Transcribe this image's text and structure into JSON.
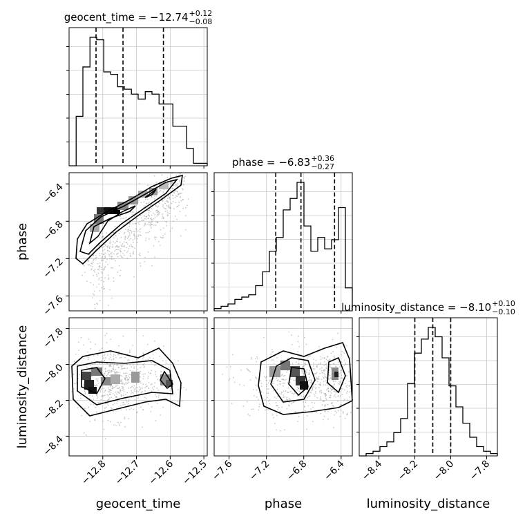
{
  "chart_data": {
    "type": "corner",
    "parameters": [
      "geocent_time",
      "phase",
      "luminosity_distance"
    ],
    "axis_ranges": {
      "geocent_time": [
        -12.9,
        -12.49
      ],
      "phase": [
        -7.76,
        -6.28
      ],
      "luminosity_distance": [
        -8.51,
        -7.74
      ]
    },
    "tick_values": {
      "geocent_time": [
        -12.8,
        -12.7,
        -12.6,
        -12.5
      ],
      "phase": [
        -7.6,
        -7.2,
        -6.8,
        -6.4
      ],
      "luminosity_distance": [
        -8.4,
        -8.2,
        -8.0,
        -7.8
      ]
    },
    "tick_labels": {
      "geocent_time": [
        "−12.8",
        "−12.7",
        "−12.6",
        "−12.5"
      ],
      "phase": [
        "−7.6",
        "−7.2",
        "−6.8",
        "−6.4"
      ],
      "luminosity_distance": [
        "−8.4",
        "−8.2",
        "−8.0",
        "−7.8"
      ]
    },
    "titles": [
      {
        "param": "geocent_time",
        "main": "geocent_time = −12.74",
        "plus": "+0.12",
        "minus": "−0.08"
      },
      {
        "param": "phase",
        "main": "phase = −6.83",
        "plus": "+0.36",
        "minus": "−0.27"
      },
      {
        "param": "luminosity_distance",
        "main": "luminosity_distance = −8.10",
        "plus": "+0.10",
        "minus": "−0.10"
      }
    ],
    "quantiles": {
      "geocent_time": [
        -12.82,
        -12.74,
        -12.62
      ],
      "phase": [
        -7.1,
        -6.83,
        -6.47
      ],
      "luminosity_distance": [
        -8.2,
        -8.1,
        -8.0
      ]
    },
    "histograms": {
      "geocent_time": {
        "edges": [
          -12.9,
          -12.879,
          -12.859,
          -12.838,
          -12.818,
          -12.797,
          -12.777,
          -12.756,
          -12.736,
          -12.715,
          -12.695,
          -12.674,
          -12.654,
          -12.633,
          -12.613,
          -12.592,
          -12.572,
          -12.551,
          -12.531,
          -12.51,
          -12.49
        ],
        "counts": [
          0,
          20,
          40,
          52,
          51,
          38,
          37,
          32,
          31,
          29,
          27,
          30,
          29,
          25,
          25,
          16,
          16,
          7,
          1,
          1
        ]
      },
      "phase": {
        "edges": [
          -7.76,
          -7.686,
          -7.612,
          -7.538,
          -7.464,
          -7.39,
          -7.316,
          -7.242,
          -7.168,
          -7.094,
          -7.02,
          -6.946,
          -6.872,
          -6.798,
          -6.724,
          -6.65,
          -6.576,
          -6.502,
          -6.428,
          -6.354,
          -6.28
        ],
        "counts": [
          1,
          2,
          3,
          5,
          6,
          7,
          11,
          17,
          26,
          32,
          44,
          49,
          56,
          37,
          26,
          32,
          27,
          31,
          45,
          10
        ]
      },
      "luminosity_distance": {
        "edges": [
          -8.51,
          -8.4715,
          -8.433,
          -8.3945,
          -8.356,
          -8.3175,
          -8.279,
          -8.2405,
          -8.202,
          -8.1635,
          -8.125,
          -8.0865,
          -8.048,
          -8.0095,
          -7.971,
          -7.9325,
          -7.894,
          -7.8555,
          -7.817,
          -7.7785,
          -7.74
        ],
        "counts": [
          0,
          1,
          2,
          4,
          6,
          10,
          16,
          31,
          44,
          50,
          55,
          51,
          42,
          30,
          21,
          14,
          8,
          4,
          2,
          1
        ]
      }
    },
    "grid": true
  }
}
